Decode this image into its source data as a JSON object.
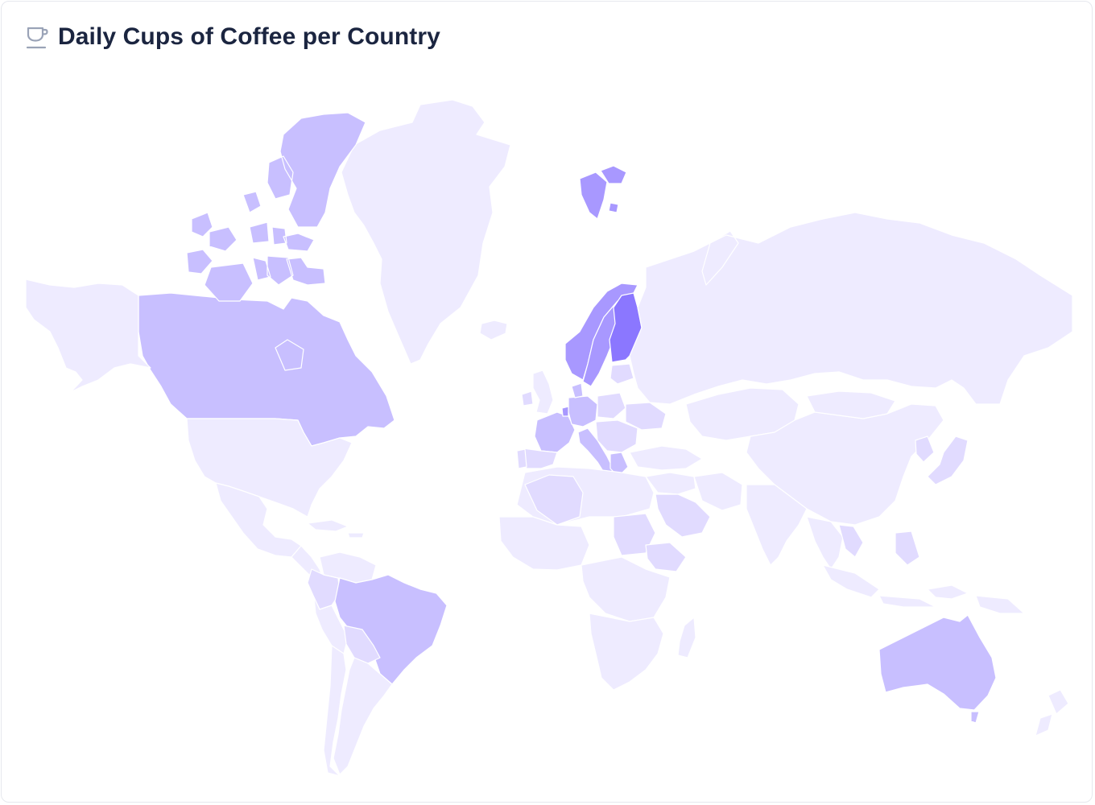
{
  "widget": {
    "title": "Daily Cups of Coffee per Country",
    "icon": "coffee-cup-icon"
  },
  "colors": {
    "level0": "#eeebff",
    "level1": "#e1dbff",
    "level2": "#c8bfff",
    "level3": "#a898ff",
    "level4": "#8b77ff",
    "icon": "#9aa3b7",
    "title": "#1b2540"
  },
  "map_data": {
    "type": "choropleth",
    "metric": "relative coffee consumption level",
    "regions": [
      {
        "name": "Greenland",
        "level": 0
      },
      {
        "name": "Svalbard",
        "level": 3
      },
      {
        "name": "Canada",
        "level": 2
      },
      {
        "name": "Canadian Arctic Islands",
        "level": 2
      },
      {
        "name": "Alaska",
        "level": 0
      },
      {
        "name": "United States",
        "level": 0
      },
      {
        "name": "Mexico",
        "level": 0
      },
      {
        "name": "Central America",
        "level": 0
      },
      {
        "name": "Caribbean",
        "level": 0
      },
      {
        "name": "Colombia",
        "level": 1
      },
      {
        "name": "Venezuela",
        "level": 0
      },
      {
        "name": "Peru",
        "level": 0
      },
      {
        "name": "Brazil",
        "level": 2
      },
      {
        "name": "Bolivia",
        "level": 1
      },
      {
        "name": "Argentina",
        "level": 0
      },
      {
        "name": "Chile",
        "level": 0
      },
      {
        "name": "Iceland",
        "level": 0
      },
      {
        "name": "Norway",
        "level": 3
      },
      {
        "name": "Sweden",
        "level": 3
      },
      {
        "name": "Finland",
        "level": 4
      },
      {
        "name": "Baltics",
        "level": 1
      },
      {
        "name": "United Kingdom",
        "level": 0
      },
      {
        "name": "Ireland",
        "level": 1
      },
      {
        "name": "France",
        "level": 2
      },
      {
        "name": "Spain",
        "level": 1
      },
      {
        "name": "Portugal",
        "level": 1
      },
      {
        "name": "Germany",
        "level": 2
      },
      {
        "name": "Netherlands",
        "level": 3
      },
      {
        "name": "Denmark",
        "level": 2
      },
      {
        "name": "Poland",
        "level": 1
      },
      {
        "name": "Italy",
        "level": 2
      },
      {
        "name": "Balkans",
        "level": 1
      },
      {
        "name": "Greece",
        "level": 2
      },
      {
        "name": "Ukraine",
        "level": 1
      },
      {
        "name": "Russia",
        "level": 0
      },
      {
        "name": "Kazakhstan",
        "level": 0
      },
      {
        "name": "China",
        "level": 0
      },
      {
        "name": "Mongolia",
        "level": 0
      },
      {
        "name": "Japan",
        "level": 1
      },
      {
        "name": "Korea",
        "level": 1
      },
      {
        "name": "India",
        "level": 0
      },
      {
        "name": "Middle East",
        "level": 0
      },
      {
        "name": "Saudi Arabia",
        "level": 1
      },
      {
        "name": "Iran",
        "level": 0
      },
      {
        "name": "Turkey",
        "level": 0
      },
      {
        "name": "Southeast Asia",
        "level": 0
      },
      {
        "name": "Vietnam",
        "level": 1
      },
      {
        "name": "Indonesia",
        "level": 0
      },
      {
        "name": "Philippines",
        "level": 1
      },
      {
        "name": "Australia",
        "level": 2
      },
      {
        "name": "New Zealand",
        "level": 0
      },
      {
        "name": "North Africa",
        "level": 0
      },
      {
        "name": "Algeria",
        "level": 1
      },
      {
        "name": "West Africa",
        "level": 0
      },
      {
        "name": "Sudan",
        "level": 1
      },
      {
        "name": "Ethiopia",
        "level": 1
      },
      {
        "name": "Central Africa",
        "level": 0
      },
      {
        "name": "Southern Africa",
        "level": 0
      },
      {
        "name": "Madagascar",
        "level": 0
      }
    ]
  }
}
